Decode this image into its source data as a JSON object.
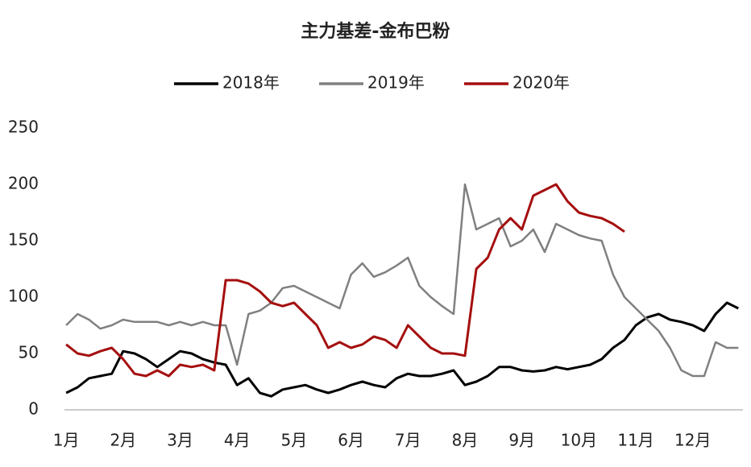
{
  "chart_data": {
    "type": "line",
    "title": "主力基差-金布巴粉",
    "x": [
      1.0,
      1.2,
      1.4,
      1.6,
      1.8,
      2.0,
      2.2,
      2.4,
      2.6,
      2.8,
      3.0,
      3.2,
      3.4,
      3.6,
      3.8,
      4.0,
      4.2,
      4.4,
      4.6,
      4.8,
      5.0,
      5.2,
      5.4,
      5.6,
      5.8,
      6.0,
      6.2,
      6.4,
      6.6,
      6.8,
      7.0,
      7.2,
      7.4,
      7.6,
      7.8,
      8.0,
      8.2,
      8.4,
      8.6,
      8.8,
      9.0,
      9.2,
      9.4,
      9.6,
      9.8,
      10.0,
      10.2,
      10.4,
      10.6,
      10.8,
      11.0,
      11.2,
      11.4,
      11.6,
      11.8,
      12.0,
      12.2,
      12.4,
      12.6,
      12.8
    ],
    "series": [
      {
        "name": "2018年",
        "color": "#000000",
        "values": [
          15,
          20,
          28,
          30,
          32,
          52,
          50,
          45,
          38,
          45,
          52,
          50,
          45,
          42,
          40,
          22,
          28,
          15,
          12,
          18,
          20,
          22,
          18,
          15,
          18,
          22,
          25,
          22,
          20,
          28,
          32,
          30,
          30,
          32,
          35,
          22,
          25,
          30,
          38,
          38,
          35,
          34,
          35,
          38,
          36,
          38,
          40,
          45,
          55,
          62,
          75,
          82,
          85,
          80,
          78,
          75,
          70,
          85,
          95,
          90
        ]
      },
      {
        "name": "2019年",
        "color": "#7f8080",
        "values": [
          75,
          85,
          80,
          72,
          75,
          80,
          78,
          78,
          78,
          75,
          78,
          75,
          78,
          75,
          75,
          40,
          85,
          88,
          95,
          108,
          110,
          105,
          100,
          95,
          90,
          120,
          130,
          118,
          122,
          128,
          135,
          110,
          100,
          92,
          85,
          200,
          160,
          165,
          170,
          145,
          150,
          160,
          140,
          165,
          160,
          155,
          152,
          150,
          120,
          100,
          90,
          80,
          70,
          55,
          35,
          30,
          30,
          60,
          55,
          55
        ]
      },
      {
        "name": "2020年",
        "color": "#a50f0f",
        "values": [
          58,
          50,
          48,
          52,
          55,
          45,
          32,
          30,
          35,
          30,
          40,
          38,
          40,
          35,
          115,
          115,
          112,
          105,
          95,
          92,
          95,
          85,
          75,
          55,
          60,
          55,
          58,
          65,
          62,
          55,
          75,
          65,
          55,
          50,
          50,
          48,
          125,
          135,
          160,
          170,
          160,
          190,
          195,
          200,
          185,
          175,
          172,
          170,
          165,
          158,
          null,
          null,
          null,
          null,
          null,
          null,
          null,
          null,
          null,
          null
        ]
      }
    ],
    "xlim": [
      0.97,
      12.88
    ],
    "xticks": [
      {
        "value": 1,
        "label": "1月"
      },
      {
        "value": 2,
        "label": "2月"
      },
      {
        "value": 3,
        "label": "3月"
      },
      {
        "value": 4,
        "label": "4月"
      },
      {
        "value": 5,
        "label": "5月"
      },
      {
        "value": 6,
        "label": "6月"
      },
      {
        "value": 7,
        "label": "7月"
      },
      {
        "value": 8,
        "label": "8月"
      },
      {
        "value": 9,
        "label": "9月"
      },
      {
        "value": 10,
        "label": "10月"
      },
      {
        "value": 11,
        "label": "11月"
      },
      {
        "value": 12,
        "label": "12月"
      }
    ],
    "ylim": [
      0,
      250
    ],
    "yticks": [
      0,
      50,
      100,
      150,
      200,
      250
    ],
    "legend": "top"
  }
}
